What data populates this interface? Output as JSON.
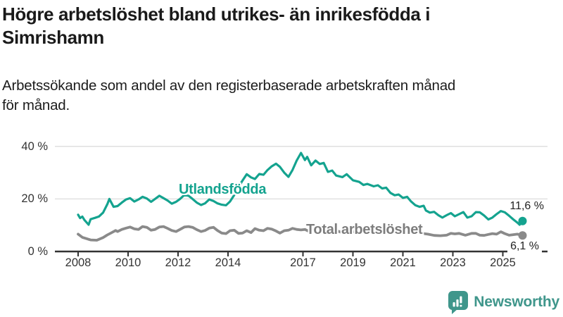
{
  "header": {
    "title_lines": [
      "Högre arbetslöshet bland utrikes- än inrikesfödda i",
      "Simrishamn"
    ],
    "subtitle_lines": [
      "Arbetssökande som andel av den registerbaserade arbetskraften månad",
      "för månad."
    ]
  },
  "branding": {
    "logo_text": "Newsworthy",
    "logo_icon": "newsworthy-speech-bubble-bar-chart-icon",
    "logo_color": "#3f968b"
  },
  "chart_data": {
    "type": "line",
    "title": "Högre arbetslöshet bland utrikes- än inrikesfödda i Simrishamn",
    "subtitle": "Arbetssökande som andel av den registerbaserade arbetskraften månad för månad.",
    "unit": "%",
    "grid": "horizontal-only",
    "legend": "inline-series-labels",
    "xlim": [
      2007.1,
      2026.8
    ],
    "ylim": [
      0,
      43
    ],
    "x_tick_labels": [
      "2008",
      "2010",
      "2012",
      "2014",
      "2017",
      "2019",
      "2021",
      "2023",
      "2025"
    ],
    "y_tick_labels": [
      "40 %",
      "20 %",
      "0 %"
    ],
    "colors": {
      "gridline": "#dcdcdc",
      "axis": "#333333"
    },
    "series": [
      {
        "name": "Utlandsfödda",
        "color": "#14a38f",
        "end_label": "11,6 %",
        "end_value": 11.6,
        "points": [
          [
            2008.0,
            14.0
          ],
          [
            2008.08,
            12.7
          ],
          [
            2008.17,
            13.3
          ],
          [
            2008.25,
            12.0
          ],
          [
            2008.42,
            10.2
          ],
          [
            2008.5,
            12.3
          ],
          [
            2008.67,
            12.8
          ],
          [
            2008.83,
            13.3
          ],
          [
            2009.0,
            14.8
          ],
          [
            2009.17,
            18.0
          ],
          [
            2009.25,
            20.0
          ],
          [
            2009.42,
            17.0
          ],
          [
            2009.58,
            17.3
          ],
          [
            2009.75,
            18.6
          ],
          [
            2009.92,
            19.8
          ],
          [
            2010.08,
            20.3
          ],
          [
            2010.25,
            19.0
          ],
          [
            2010.42,
            19.8
          ],
          [
            2010.58,
            20.8
          ],
          [
            2010.75,
            20.2
          ],
          [
            2010.92,
            18.9
          ],
          [
            2011.08,
            20.0
          ],
          [
            2011.25,
            21.2
          ],
          [
            2011.42,
            20.3
          ],
          [
            2011.58,
            19.4
          ],
          [
            2011.75,
            18.2
          ],
          [
            2011.92,
            18.9
          ],
          [
            2012.08,
            20.0
          ],
          [
            2012.25,
            21.5
          ],
          [
            2012.42,
            21.2
          ],
          [
            2012.58,
            20.0
          ],
          [
            2012.75,
            18.6
          ],
          [
            2012.92,
            17.7
          ],
          [
            2013.08,
            18.3
          ],
          [
            2013.25,
            19.8
          ],
          [
            2013.42,
            19.2
          ],
          [
            2013.58,
            18.3
          ],
          [
            2013.75,
            17.8
          ],
          [
            2013.92,
            17.6
          ],
          [
            2014.08,
            19.0
          ],
          [
            2014.25,
            21.5
          ],
          [
            2014.42,
            24.5
          ],
          [
            2014.58,
            27.0
          ],
          [
            2014.75,
            29.4
          ],
          [
            2014.92,
            28.2
          ],
          [
            2015.08,
            27.6
          ],
          [
            2015.25,
            29.5
          ],
          [
            2015.42,
            29.2
          ],
          [
            2015.58,
            31.0
          ],
          [
            2015.75,
            32.4
          ],
          [
            2015.92,
            33.4
          ],
          [
            2016.08,
            32.2
          ],
          [
            2016.25,
            30.0
          ],
          [
            2016.42,
            28.4
          ],
          [
            2016.58,
            31.0
          ],
          [
            2016.75,
            34.6
          ],
          [
            2016.92,
            37.5
          ],
          [
            2017.08,
            34.8
          ],
          [
            2017.17,
            36.0
          ],
          [
            2017.33,
            32.8
          ],
          [
            2017.5,
            34.6
          ],
          [
            2017.67,
            33.3
          ],
          [
            2017.83,
            33.7
          ],
          [
            2018.0,
            30.3
          ],
          [
            2018.17,
            30.8
          ],
          [
            2018.33,
            28.9
          ],
          [
            2018.58,
            28.3
          ],
          [
            2018.75,
            29.4
          ],
          [
            2019.0,
            27.1
          ],
          [
            2019.25,
            26.5
          ],
          [
            2019.42,
            25.3
          ],
          [
            2019.58,
            25.7
          ],
          [
            2019.83,
            24.8
          ],
          [
            2020.0,
            25.2
          ],
          [
            2020.17,
            24.0
          ],
          [
            2020.33,
            24.3
          ],
          [
            2020.5,
            22.3
          ],
          [
            2020.67,
            21.4
          ],
          [
            2020.83,
            21.7
          ],
          [
            2021.0,
            20.4
          ],
          [
            2021.17,
            20.8
          ],
          [
            2021.33,
            19.0
          ],
          [
            2021.5,
            17.6
          ],
          [
            2021.67,
            17.0
          ],
          [
            2021.83,
            17.4
          ],
          [
            2021.92,
            15.6
          ],
          [
            2022.08,
            14.8
          ],
          [
            2022.25,
            15.1
          ],
          [
            2022.42,
            13.8
          ],
          [
            2022.58,
            12.9
          ],
          [
            2022.75,
            13.8
          ],
          [
            2022.92,
            14.6
          ],
          [
            2023.08,
            13.4
          ],
          [
            2023.25,
            14.2
          ],
          [
            2023.42,
            15.0
          ],
          [
            2023.58,
            12.9
          ],
          [
            2023.75,
            13.4
          ],
          [
            2023.92,
            15.0
          ],
          [
            2024.08,
            14.9
          ],
          [
            2024.25,
            13.7
          ],
          [
            2024.42,
            12.2
          ],
          [
            2024.58,
            12.9
          ],
          [
            2024.75,
            14.2
          ],
          [
            2024.92,
            15.4
          ],
          [
            2025.08,
            14.9
          ],
          [
            2025.25,
            13.6
          ],
          [
            2025.42,
            12.2
          ],
          [
            2025.58,
            11.0
          ],
          [
            2025.67,
            10.2
          ],
          [
            2025.79,
            11.6
          ]
        ]
      },
      {
        "name": "Total arbetslöshet",
        "color": "#8a8a8a",
        "end_label": "6,1 %",
        "end_value": 6.1,
        "points": [
          [
            2008.0,
            6.6
          ],
          [
            2008.17,
            5.4
          ],
          [
            2008.33,
            4.9
          ],
          [
            2008.5,
            4.4
          ],
          [
            2008.75,
            4.3
          ],
          [
            2009.0,
            5.3
          ],
          [
            2009.17,
            6.3
          ],
          [
            2009.33,
            7.1
          ],
          [
            2009.5,
            8.0
          ],
          [
            2009.58,
            7.6
          ],
          [
            2009.75,
            8.4
          ],
          [
            2009.92,
            8.9
          ],
          [
            2010.08,
            9.3
          ],
          [
            2010.25,
            8.6
          ],
          [
            2010.42,
            8.4
          ],
          [
            2010.58,
            9.5
          ],
          [
            2010.75,
            9.2
          ],
          [
            2010.92,
            8.1
          ],
          [
            2011.08,
            8.4
          ],
          [
            2011.25,
            9.3
          ],
          [
            2011.42,
            9.5
          ],
          [
            2011.58,
            8.8
          ],
          [
            2011.75,
            8.0
          ],
          [
            2011.92,
            7.6
          ],
          [
            2012.08,
            8.4
          ],
          [
            2012.25,
            9.3
          ],
          [
            2012.42,
            9.5
          ],
          [
            2012.58,
            9.2
          ],
          [
            2012.75,
            8.3
          ],
          [
            2012.92,
            7.6
          ],
          [
            2013.08,
            8.0
          ],
          [
            2013.25,
            8.9
          ],
          [
            2013.42,
            9.2
          ],
          [
            2013.58,
            8.0
          ],
          [
            2013.75,
            7.0
          ],
          [
            2013.92,
            6.8
          ],
          [
            2014.08,
            7.9
          ],
          [
            2014.25,
            8.1
          ],
          [
            2014.42,
            6.9
          ],
          [
            2014.58,
            7.0
          ],
          [
            2014.75,
            7.9
          ],
          [
            2014.92,
            7.2
          ],
          [
            2015.08,
            8.7
          ],
          [
            2015.25,
            8.1
          ],
          [
            2015.42,
            7.9
          ],
          [
            2015.58,
            8.8
          ],
          [
            2015.75,
            8.5
          ],
          [
            2015.92,
            7.8
          ],
          [
            2016.08,
            7.0
          ],
          [
            2016.25,
            7.9
          ],
          [
            2016.42,
            8.1
          ],
          [
            2016.58,
            8.8
          ],
          [
            2016.75,
            8.4
          ],
          [
            2016.92,
            8.2
          ],
          [
            2017.08,
            8.4
          ],
          [
            2017.25,
            7.6
          ],
          [
            2017.42,
            8.0
          ],
          [
            2017.58,
            7.7
          ],
          [
            2017.75,
            7.0
          ],
          [
            2017.92,
            7.4
          ],
          [
            2018.08,
            7.9
          ],
          [
            2018.25,
            7.3
          ],
          [
            2018.42,
            7.7
          ],
          [
            2018.58,
            7.1
          ],
          [
            2018.75,
            7.5
          ],
          [
            2019.0,
            7.6
          ],
          [
            2019.25,
            7.1
          ],
          [
            2019.5,
            7.4
          ],
          [
            2019.75,
            7.8
          ],
          [
            2020.0,
            8.0
          ],
          [
            2020.25,
            8.8
          ],
          [
            2020.5,
            8.6
          ],
          [
            2020.75,
            8.1
          ],
          [
            2021.0,
            8.4
          ],
          [
            2021.25,
            7.9
          ],
          [
            2021.5,
            7.3
          ],
          [
            2021.75,
            6.9
          ],
          [
            2022.0,
            6.6
          ],
          [
            2022.25,
            6.1
          ],
          [
            2022.5,
            6.0
          ],
          [
            2022.75,
            6.2
          ],
          [
            2022.92,
            6.9
          ],
          [
            2023.08,
            6.7
          ],
          [
            2023.25,
            6.9
          ],
          [
            2023.5,
            6.2
          ],
          [
            2023.75,
            6.9
          ],
          [
            2023.92,
            6.9
          ],
          [
            2024.08,
            6.2
          ],
          [
            2024.25,
            6.1
          ],
          [
            2024.42,
            6.5
          ],
          [
            2024.58,
            6.8
          ],
          [
            2024.75,
            6.6
          ],
          [
            2024.92,
            7.5
          ],
          [
            2025.08,
            6.8
          ],
          [
            2025.25,
            6.2
          ],
          [
            2025.42,
            6.4
          ],
          [
            2025.58,
            6.6
          ],
          [
            2025.79,
            6.1
          ]
        ]
      }
    ]
  }
}
